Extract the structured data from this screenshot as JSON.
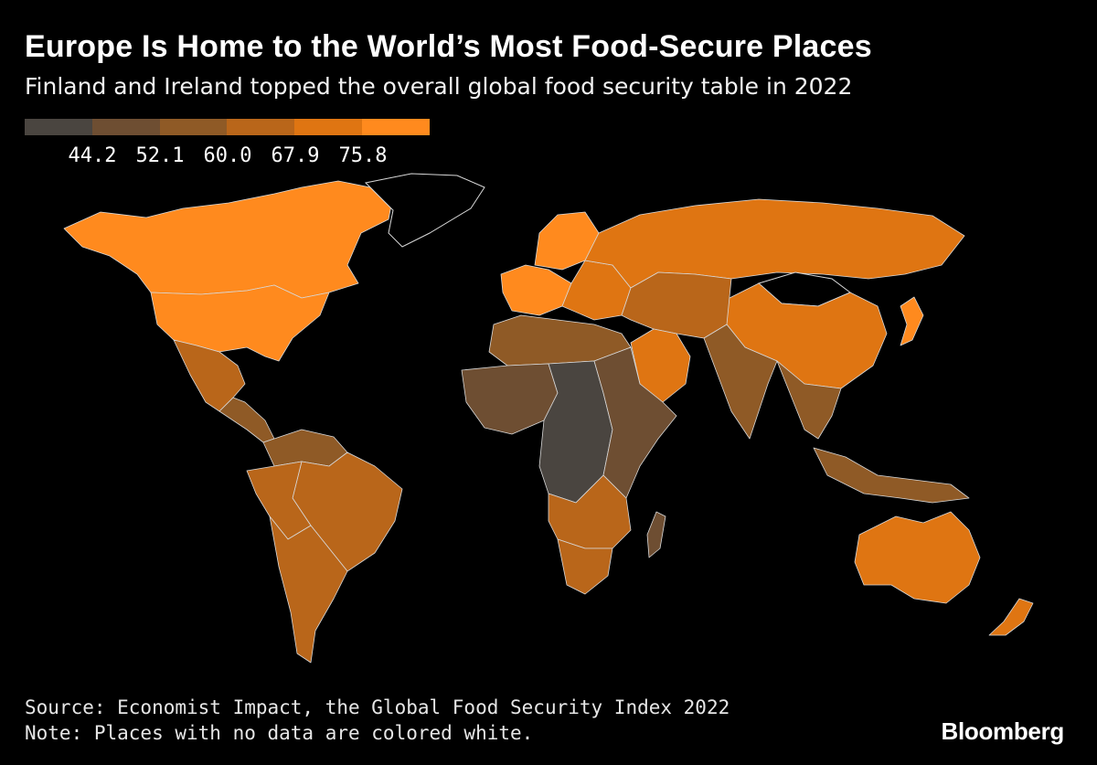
{
  "header": {
    "title": "Europe Is Home to the World’s Most Food-Secure Places",
    "subtitle": "Finland and Ireland topped the overall global food security table in 2022"
  },
  "legend": {
    "colors": [
      "#4a4540",
      "#6e4e32",
      "#8f5a26",
      "#b9661a",
      "#df7512",
      "#ff8a1e"
    ],
    "labels": [
      "44.2",
      "52.1",
      "60.0",
      "67.9",
      "75.8"
    ]
  },
  "footer": {
    "source": "Source: Economist Impact, the Global Food Security Index 2022",
    "note": "Note: Places with no data are colored white.",
    "brand": "Bloomberg"
  },
  "regions": [
    {
      "name": "Canada",
      "level": 5
    },
    {
      "name": "United States",
      "level": 5
    },
    {
      "name": "Greenland",
      "level": -1
    },
    {
      "name": "Mexico",
      "level": 3
    },
    {
      "name": "Central America",
      "level": 2
    },
    {
      "name": "Colombia / Venezuela",
      "level": 2
    },
    {
      "name": "Brazil",
      "level": 3
    },
    {
      "name": "Peru / Bolivia",
      "level": 3
    },
    {
      "name": "Argentina / Chile",
      "level": 3
    },
    {
      "name": "Western Europe",
      "level": 5
    },
    {
      "name": "Scandinavia",
      "level": 5
    },
    {
      "name": "Eastern Europe",
      "level": 4
    },
    {
      "name": "Russia",
      "level": 4
    },
    {
      "name": "Mongolia",
      "level": -1
    },
    {
      "name": "China",
      "level": 4
    },
    {
      "name": "Japan",
      "level": 5
    },
    {
      "name": "Middle East",
      "level": 3
    },
    {
      "name": "Saudi Arabia",
      "level": 4
    },
    {
      "name": "India",
      "level": 2
    },
    {
      "name": "Southeast Asia",
      "level": 2
    },
    {
      "name": "North Africa",
      "level": 2
    },
    {
      "name": "West Africa",
      "level": 1
    },
    {
      "name": "Central Africa",
      "level": 0
    },
    {
      "name": "East Africa",
      "level": 1
    },
    {
      "name": "Southern Africa",
      "level": 3
    },
    {
      "name": "South Africa",
      "level": 3
    },
    {
      "name": "Madagascar",
      "level": 1
    },
    {
      "name": "Indonesia",
      "level": 2
    },
    {
      "name": "Australia",
      "level": 4
    },
    {
      "name": "New Zealand",
      "level": 4
    }
  ]
}
